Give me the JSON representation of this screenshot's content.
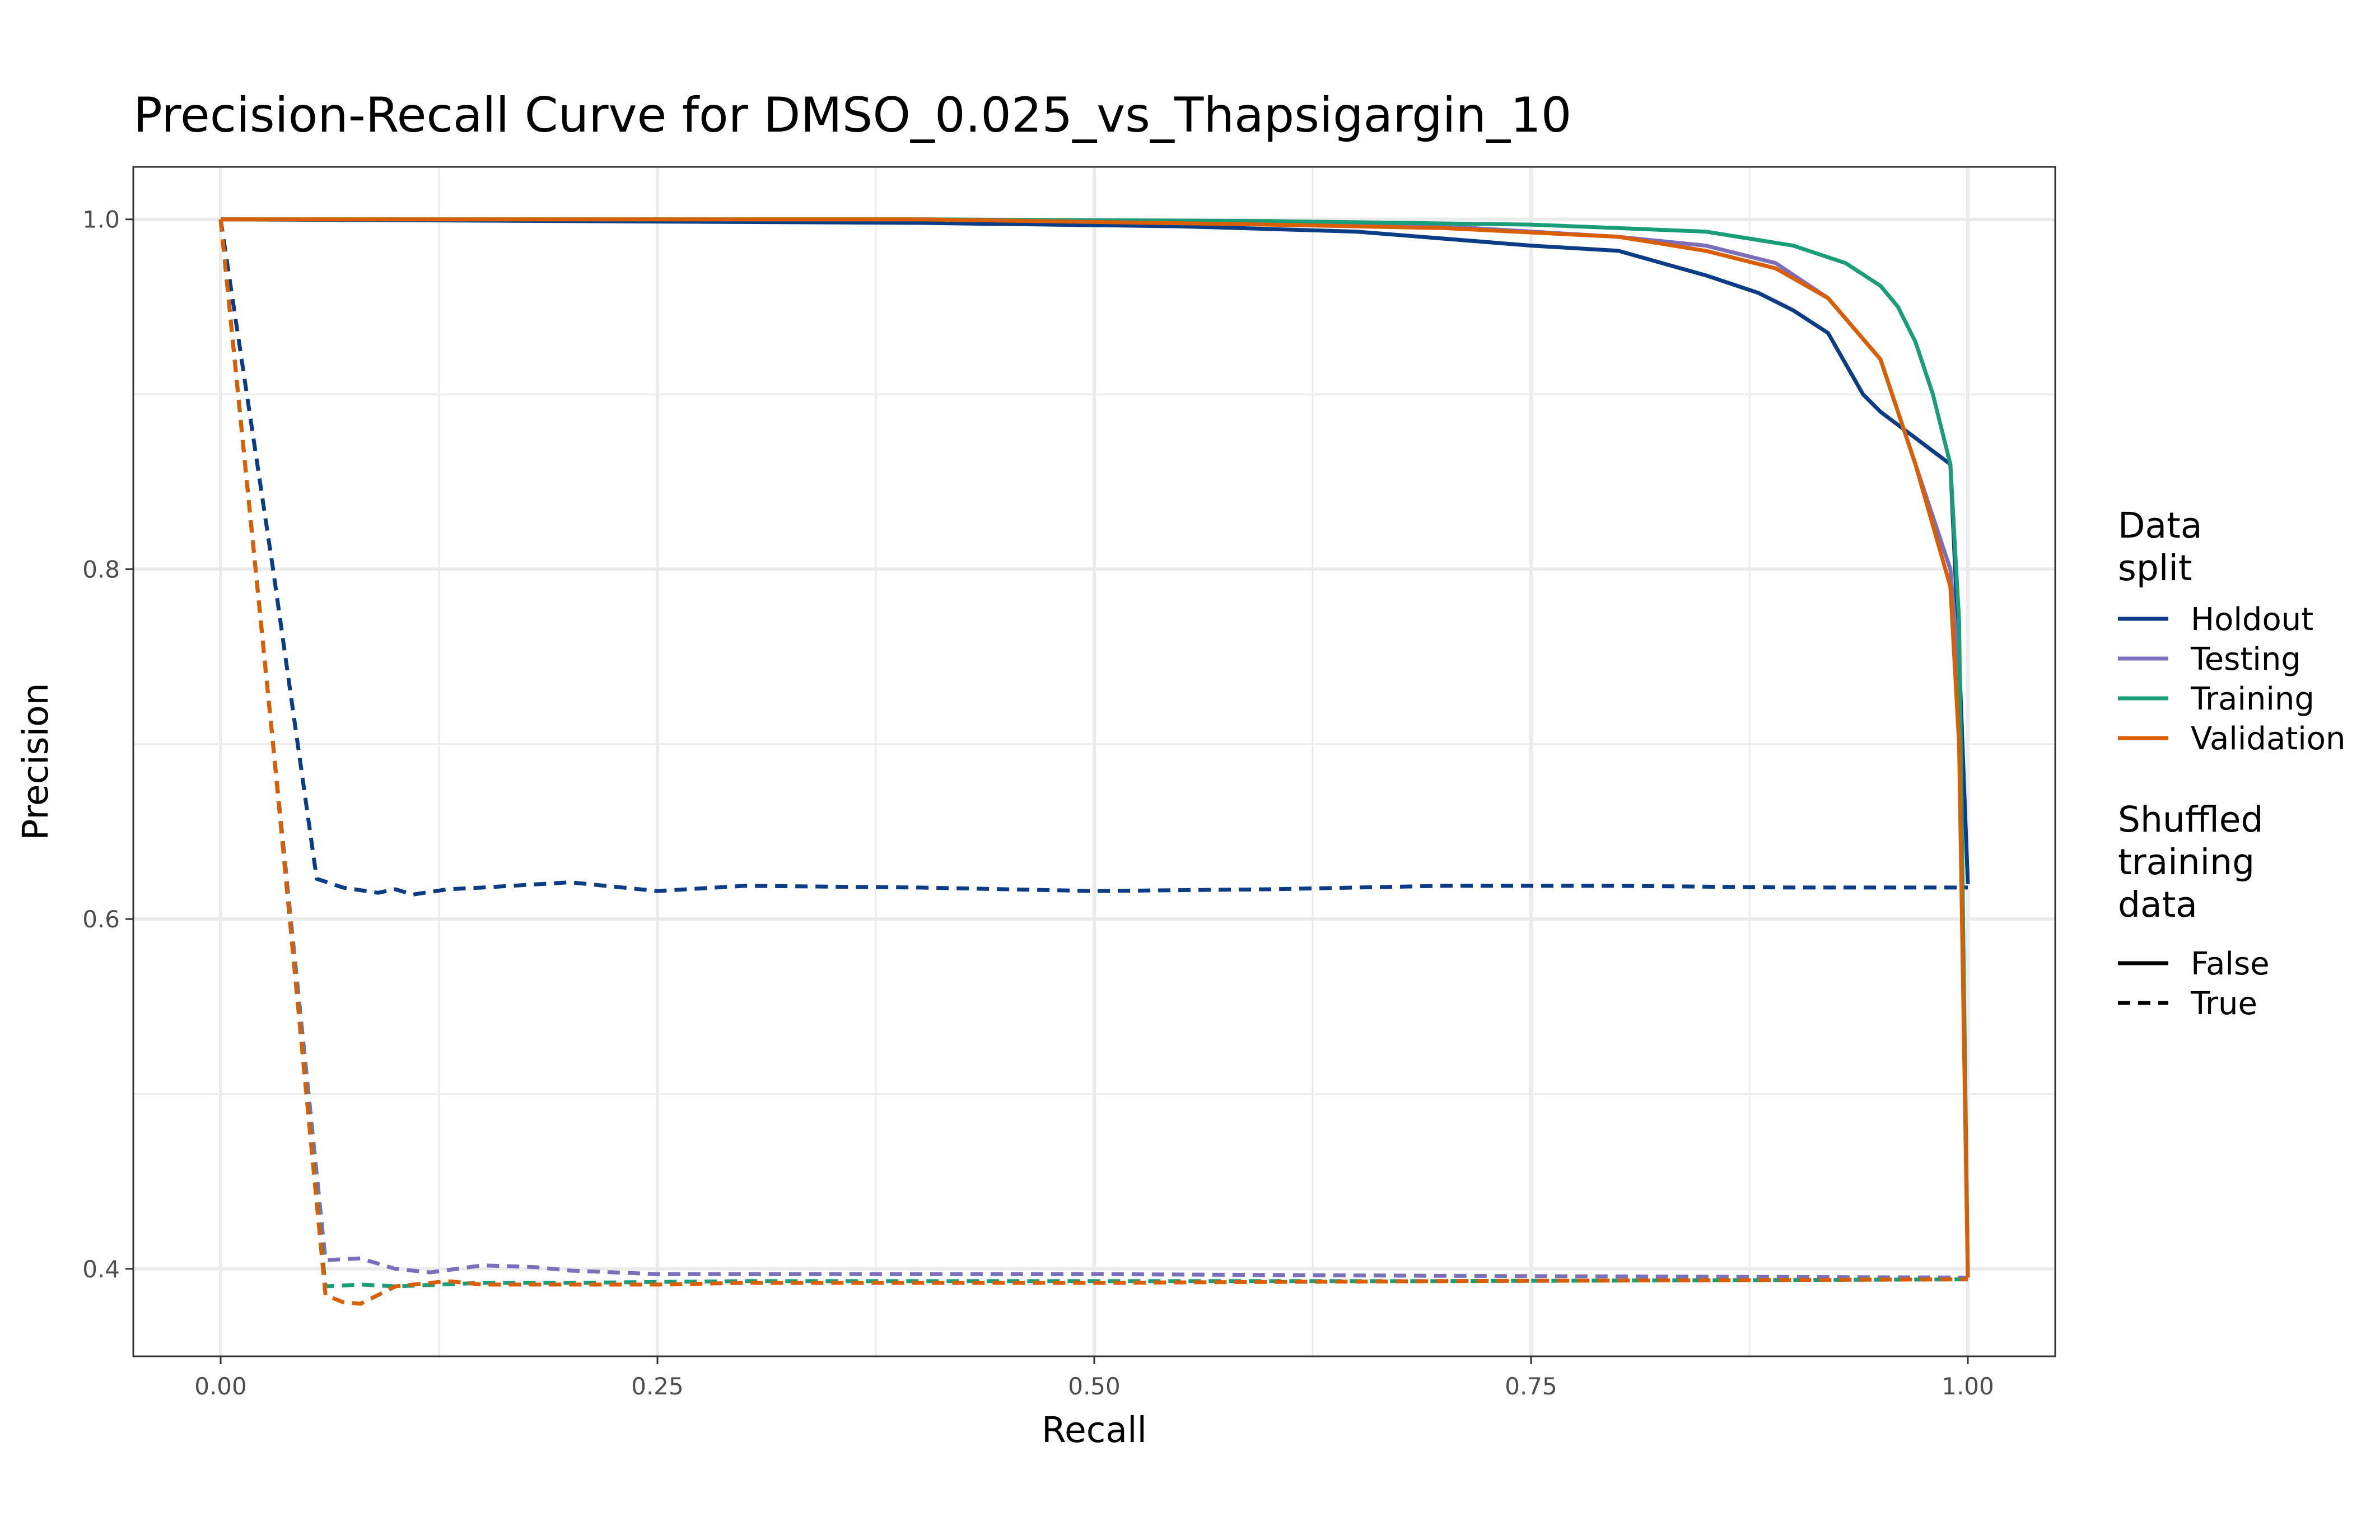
{
  "chart_data": {
    "type": "line",
    "title": "Precision-Recall Curve for DMSO_0.025_vs_Thapsigargin_10",
    "xlabel": "Recall",
    "ylabel": "Precision",
    "xlim": [
      -0.05,
      1.05
    ],
    "ylim": [
      0.35,
      1.03
    ],
    "x_ticks": [
      "0.00",
      "0.25",
      "0.50",
      "0.75",
      "1.00"
    ],
    "x_tick_values": [
      0,
      0.25,
      0.5,
      0.75,
      1.0
    ],
    "y_ticks": [
      "0.4",
      "0.6",
      "0.8",
      "1.0"
    ],
    "y_tick_values": [
      0.4,
      0.6,
      0.8,
      1.0
    ],
    "grid": true,
    "legend_position": "right",
    "legend": {
      "color_title": "Data\nsplit",
      "linetype_title": "Shuffled\ntraining\ndata",
      "linetype_entries": [
        {
          "label": "False",
          "dash": "solid"
        },
        {
          "label": "True",
          "dash": "dashed"
        }
      ]
    },
    "series": [
      {
        "name": "Holdout",
        "color": "#0b3c86",
        "shuffled": "False",
        "x": [
          0,
          0.2,
          0.4,
          0.55,
          0.65,
          0.75,
          0.8,
          0.85,
          0.88,
          0.9,
          0.92,
          0.94,
          0.95,
          0.97,
          0.99,
          0.995,
          1.0
        ],
        "y": [
          1.0,
          0.999,
          0.998,
          0.996,
          0.993,
          0.985,
          0.982,
          0.968,
          0.958,
          0.948,
          0.935,
          0.9,
          0.89,
          0.875,
          0.86,
          0.75,
          0.62
        ]
      },
      {
        "name": "Holdout",
        "color": "#0b3c86",
        "shuffled": "True",
        "x": [
          0,
          0.03,
          0.055,
          0.07,
          0.09,
          0.1,
          0.11,
          0.13,
          0.15,
          0.2,
          0.25,
          0.3,
          0.4,
          0.5,
          0.6,
          0.7,
          0.8,
          0.9,
          1.0
        ],
        "y": [
          1.0,
          0.8,
          0.623,
          0.618,
          0.615,
          0.617,
          0.614,
          0.617,
          0.618,
          0.621,
          0.616,
          0.619,
          0.618,
          0.616,
          0.617,
          0.619,
          0.619,
          0.618,
          0.618
        ]
      },
      {
        "name": "Testing",
        "color": "#7b6fbc",
        "shuffled": "False",
        "x": [
          0,
          0.2,
          0.4,
          0.6,
          0.7,
          0.8,
          0.85,
          0.89,
          0.92,
          0.95,
          0.97,
          0.99,
          0.995,
          1.0
        ],
        "y": [
          1.0,
          1.0,
          1.0,
          0.998,
          0.996,
          0.99,
          0.985,
          0.975,
          0.955,
          0.92,
          0.86,
          0.8,
          0.74,
          0.395
        ]
      },
      {
        "name": "Testing",
        "color": "#7b6fbc",
        "shuffled": "True",
        "x": [
          0,
          0.03,
          0.06,
          0.08,
          0.1,
          0.12,
          0.15,
          0.18,
          0.2,
          0.25,
          0.3,
          0.35,
          0.5,
          0.7,
          1.0
        ],
        "y": [
          1.0,
          0.7,
          0.405,
          0.406,
          0.4,
          0.398,
          0.402,
          0.401,
          0.399,
          0.397,
          0.397,
          0.397,
          0.397,
          0.396,
          0.395
        ]
      },
      {
        "name": "Training",
        "color": "#1a9e77",
        "shuffled": "False",
        "x": [
          0,
          0.2,
          0.4,
          0.6,
          0.75,
          0.85,
          0.9,
          0.93,
          0.95,
          0.96,
          0.97,
          0.98,
          0.99,
          0.995,
          1.0
        ],
        "y": [
          1.0,
          1.0,
          1.0,
          0.999,
          0.997,
          0.993,
          0.985,
          0.975,
          0.962,
          0.95,
          0.93,
          0.9,
          0.86,
          0.77,
          0.395
        ]
      },
      {
        "name": "Training",
        "color": "#1a9e77",
        "shuffled": "True",
        "x": [
          0,
          0.03,
          0.06,
          0.08,
          0.1,
          0.15,
          0.2,
          0.3,
          0.5,
          0.7,
          1.0
        ],
        "y": [
          1.0,
          0.7,
          0.39,
          0.391,
          0.39,
          0.392,
          0.392,
          0.393,
          0.393,
          0.393,
          0.394
        ]
      },
      {
        "name": "Validation",
        "color": "#d95f02",
        "shuffled": "False",
        "x": [
          0,
          0.2,
          0.4,
          0.6,
          0.7,
          0.8,
          0.85,
          0.89,
          0.92,
          0.95,
          0.97,
          0.99,
          0.995,
          1.0
        ],
        "y": [
          1.0,
          1.0,
          1.0,
          0.997,
          0.995,
          0.99,
          0.982,
          0.972,
          0.955,
          0.92,
          0.86,
          0.79,
          0.7,
          0.395
        ]
      },
      {
        "name": "Validation",
        "color": "#d95f02",
        "shuffled": "True",
        "x": [
          0,
          0.03,
          0.06,
          0.07,
          0.08,
          0.09,
          0.1,
          0.13,
          0.15,
          0.2,
          0.25,
          0.3,
          0.5,
          0.7,
          1.0
        ],
        "y": [
          1.0,
          0.7,
          0.385,
          0.381,
          0.38,
          0.385,
          0.39,
          0.393,
          0.391,
          0.391,
          0.391,
          0.392,
          0.392,
          0.393,
          0.394
        ]
      }
    ]
  }
}
